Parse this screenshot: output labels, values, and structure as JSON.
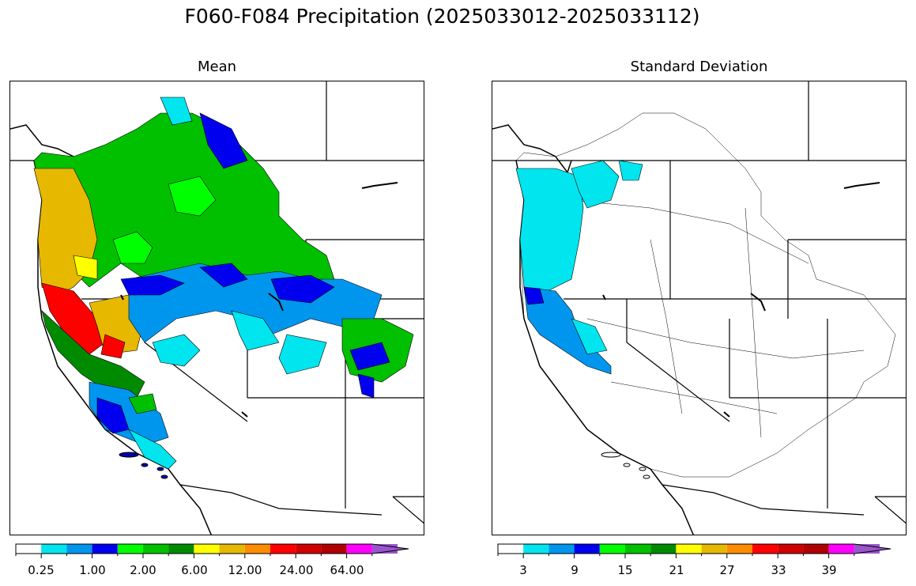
{
  "title": "F060-F084 Precipitation (2025033012-2025033112)",
  "panels": [
    {
      "id": "mean",
      "title": "Mean",
      "colorbar": {
        "colors": [
          "#ffffff",
          "#00e5ee",
          "#0096ee",
          "#0000ee",
          "#00ff00",
          "#00c000",
          "#008a00",
          "#ffff00",
          "#e6b800",
          "#ff8c00",
          "#ff0000",
          "#d00000",
          "#b00000",
          "#ff00ff",
          "#9955cc"
        ],
        "extend_arrow_color": "#9955cc",
        "tick_labels": [
          "0.25",
          "1.00",
          "2.00",
          "6.00",
          "12.00",
          "24.00",
          "64.00"
        ]
      }
    },
    {
      "id": "stdev",
      "title": "Standard Deviation",
      "colorbar": {
        "colors": [
          "#ffffff",
          "#00e5ee",
          "#0096ee",
          "#0000ee",
          "#00ff00",
          "#00c000",
          "#008a00",
          "#ffff00",
          "#e6b800",
          "#ff8c00",
          "#ff0000",
          "#d00000",
          "#b00000",
          "#ff00ff",
          "#9955cc"
        ],
        "extend_arrow_color": "#9955cc",
        "tick_labels": [
          "3",
          "9",
          "15",
          "21",
          "27",
          "33",
          "39"
        ]
      }
    }
  ]
}
